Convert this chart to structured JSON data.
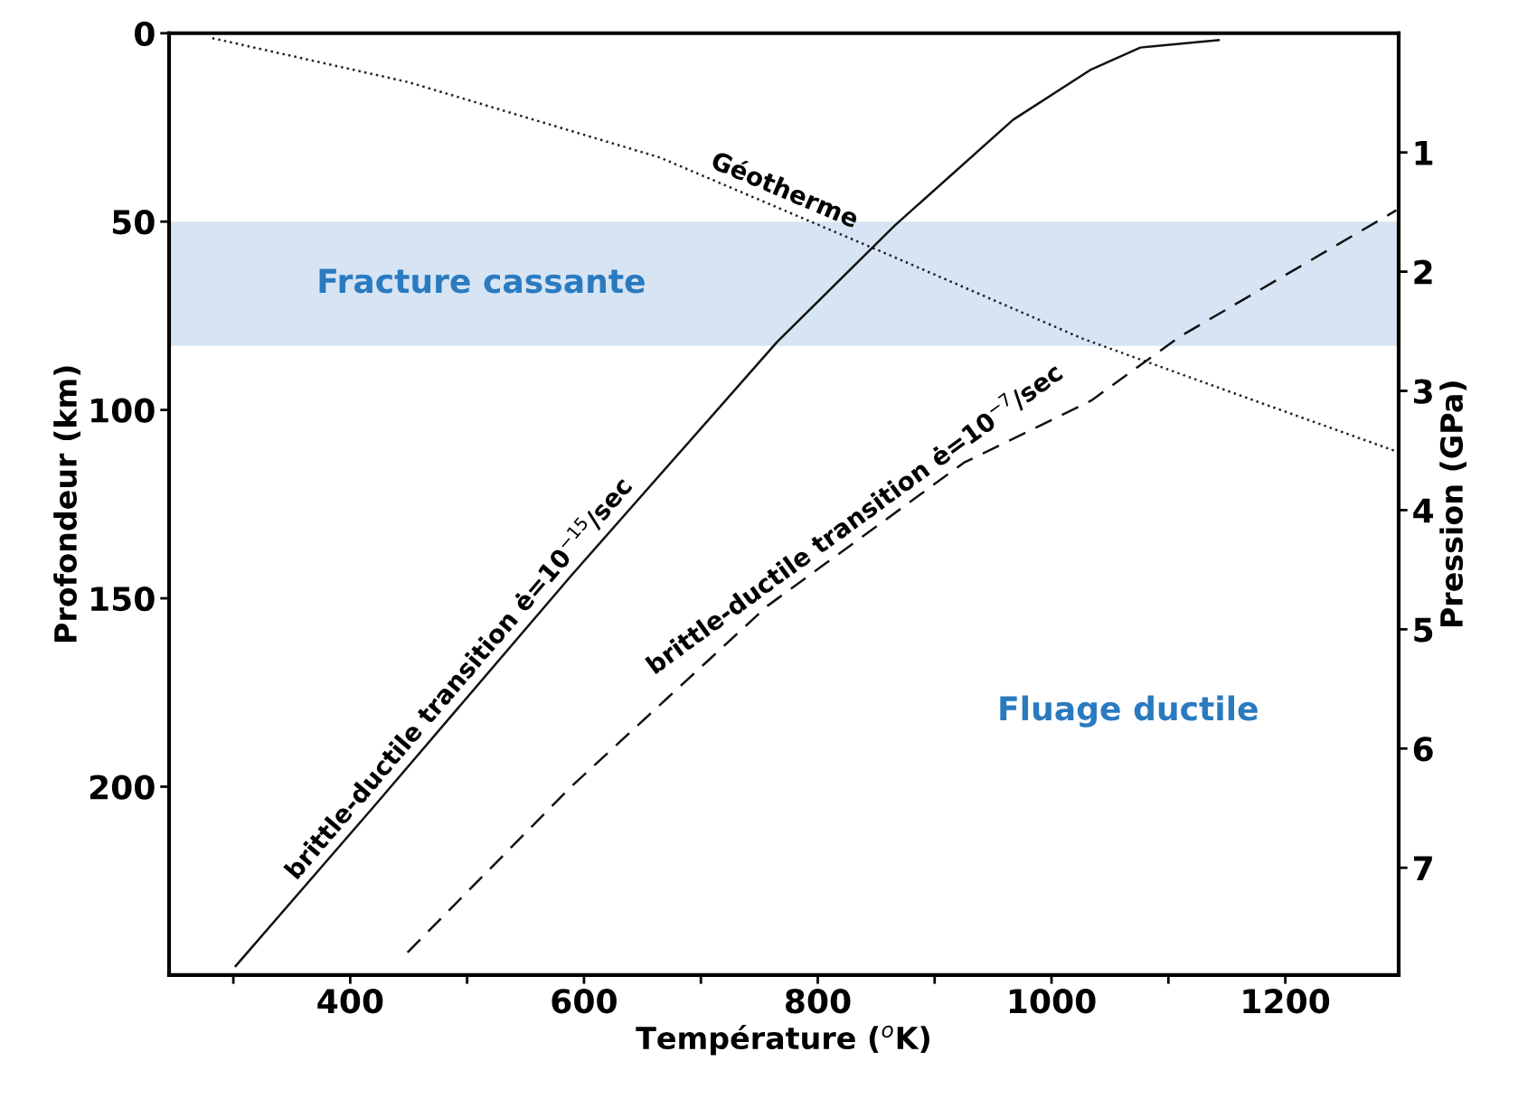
{
  "chart_data": {
    "type": "line",
    "xlabel": "Température ($^{o}$K)",
    "ylabel": "Profondeur (km)",
    "y2label": "Pression (GPa)",
    "xlim": [
      245,
      1297
    ],
    "ylim": [
      250,
      0
    ],
    "y2lim": [
      7.9,
      0
    ],
    "xticks": [
      {
        "value": 300,
        "label": null
      },
      400,
      {
        "value": 500,
        "label": null
      },
      600,
      {
        "value": 700,
        "label": null
      },
      800,
      {
        "value": 900,
        "label": null
      },
      1000,
      {
        "value": 1100,
        "label": null
      },
      1200
    ],
    "yticks": [
      0,
      50,
      100,
      150,
      200
    ],
    "y2ticks": [
      1,
      2,
      3,
      4,
      5,
      6,
      7
    ],
    "grid": false,
    "marker": "none",
    "series": [
      {
        "name": "Géotherme",
        "color": "#222222",
        "line_style": "dotted",
        "x": [
          282,
          450,
          665,
          866,
          1026,
          1160,
          1295
        ],
        "values": [
          1.3,
          13,
          33,
          59.5,
          81,
          96,
          111
        ]
      },
      {
        "name": "brittle-ductile transition ė=10$^{−15}$/sec",
        "color": "#111111",
        "line_style": "solid",
        "x": [
          302,
          421,
          589,
          765,
          866,
          967,
          1034,
          1076,
          1143
        ],
        "values": [
          247.6,
          205,
          144,
          82,
          51,
          23,
          9.6,
          3.8,
          1.8
        ]
      },
      {
        "name": "brittle-ductile transition ė=10$^{−7}$/sec",
        "color": "#111111",
        "line_style": "dashed",
        "x": [
          449,
          589,
          757,
          925,
          1034,
          1110,
          1295
        ],
        "values": [
          244,
          200,
          152,
          114,
          97.5,
          80.5,
          47
        ]
      }
    ],
    "bands": [
      {
        "axis": "y",
        "from": 50,
        "to": 83,
        "label": "Fracture cassante",
        "color": "#d6e4f3"
      }
    ],
    "annotations": [
      "Fluage ductile"
    ]
  }
}
